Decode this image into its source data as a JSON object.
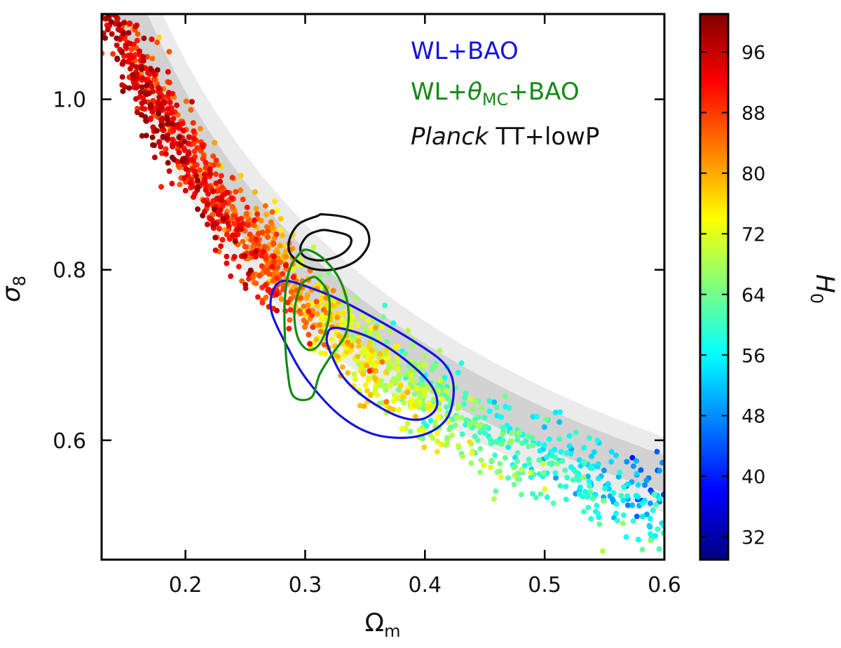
{
  "chart_data": {
    "type": "scatter",
    "title": "",
    "xlabel": {
      "symbol": "Ω",
      "sub": "m"
    },
    "ylabel": {
      "symbol": "σ",
      "sub": "8"
    },
    "xlim": [
      0.13,
      0.6
    ],
    "ylim": [
      0.46,
      1.1
    ],
    "x_ticks": [
      0.2,
      0.3,
      0.4,
      0.5,
      0.6
    ],
    "x_tick_labels": [
      "0.2",
      "0.3",
      "0.4",
      "0.5",
      "0.6"
    ],
    "y_ticks": [
      0.6,
      0.8,
      1.0
    ],
    "y_tick_labels": [
      "0.6",
      "0.8",
      "1.0"
    ],
    "grid": false,
    "colorbar": {
      "label": {
        "symbol": "H",
        "sub": "0"
      },
      "range": [
        29,
        101
      ],
      "ticks": [
        32,
        40,
        48,
        56,
        64,
        72,
        80,
        88,
        96
      ],
      "tick_labels": [
        "32",
        "40",
        "48",
        "56",
        "64",
        "72",
        "80",
        "88",
        "96"
      ],
      "colormap": "jet"
    },
    "legend": {
      "placement": "top-right",
      "entries": [
        {
          "parts": [
            {
              "t": "WL+BAO"
            }
          ],
          "color": "#1414dc"
        },
        {
          "parts": [
            {
              "t": "WL+"
            },
            {
              "t": "θ",
              "style": "italic"
            },
            {
              "t": "MC",
              "style": "sub"
            },
            {
              "t": "+BAO"
            }
          ],
          "color": "#138a13"
        },
        {
          "parts": [
            {
              "t": "Planck",
              "style": "italic"
            },
            {
              "t": " TT+lowP"
            }
          ],
          "color": "#111111"
        }
      ]
    },
    "bands": [
      {
        "name": "outer",
        "color": "#ebebeb",
        "ref_omega": 0.3,
        "s8_low": 0.728,
        "s8_high": 0.854,
        "exponent": 0.5
      },
      {
        "name": "inner",
        "color": "#d2d2d2",
        "ref_omega": 0.3,
        "s8_low": 0.762,
        "s8_high": 0.824,
        "exponent": 0.5
      }
    ],
    "contours": [
      {
        "name": "planck-68",
        "color": "#111111",
        "points": [
          [
            0.32,
            0.846
          ],
          [
            0.336,
            0.84
          ],
          [
            0.338,
            0.83
          ],
          [
            0.33,
            0.818
          ],
          [
            0.314,
            0.811
          ],
          [
            0.3,
            0.815
          ],
          [
            0.296,
            0.826
          ],
          [
            0.302,
            0.84
          ],
          [
            0.312,
            0.846
          ]
        ]
      },
      {
        "name": "planck-95",
        "color": "#111111",
        "points": [
          [
            0.315,
            0.865
          ],
          [
            0.335,
            0.861
          ],
          [
            0.35,
            0.85
          ],
          [
            0.353,
            0.83
          ],
          [
            0.342,
            0.81
          ],
          [
            0.322,
            0.8
          ],
          [
            0.302,
            0.803
          ],
          [
            0.288,
            0.818
          ],
          [
            0.287,
            0.836
          ],
          [
            0.295,
            0.854
          ],
          [
            0.31,
            0.863
          ]
        ]
      },
      {
        "name": "wlbao-68",
        "color": "#1414dc",
        "points": [
          [
            0.325,
            0.732
          ],
          [
            0.355,
            0.72
          ],
          [
            0.383,
            0.695
          ],
          [
            0.405,
            0.665
          ],
          [
            0.41,
            0.64
          ],
          [
            0.398,
            0.625
          ],
          [
            0.378,
            0.628
          ],
          [
            0.352,
            0.648
          ],
          [
            0.333,
            0.672
          ],
          [
            0.322,
            0.7
          ],
          [
            0.318,
            0.72
          ]
        ]
      },
      {
        "name": "wlbao-95",
        "color": "#1414dc",
        "points": [
          [
            0.282,
            0.787
          ],
          [
            0.302,
            0.78
          ],
          [
            0.33,
            0.764
          ],
          [
            0.362,
            0.74
          ],
          [
            0.392,
            0.715
          ],
          [
            0.416,
            0.69
          ],
          [
            0.424,
            0.662
          ],
          [
            0.418,
            0.625
          ],
          [
            0.395,
            0.605
          ],
          [
            0.36,
            0.606
          ],
          [
            0.33,
            0.628
          ],
          [
            0.302,
            0.67
          ],
          [
            0.285,
            0.71
          ],
          [
            0.272,
            0.75
          ],
          [
            0.273,
            0.775
          ]
        ]
      },
      {
        "name": "wltheta-68",
        "color": "#138a13",
        "points": [
          [
            0.31,
            0.79
          ],
          [
            0.319,
            0.773
          ],
          [
            0.32,
            0.745
          ],
          [
            0.313,
            0.715
          ],
          [
            0.303,
            0.706
          ],
          [
            0.294,
            0.72
          ],
          [
            0.291,
            0.75
          ],
          [
            0.296,
            0.78
          ],
          [
            0.304,
            0.79
          ]
        ]
      },
      {
        "name": "wltheta-95",
        "color": "#138a13",
        "points": [
          [
            0.303,
            0.823
          ],
          [
            0.316,
            0.812
          ],
          [
            0.329,
            0.788
          ],
          [
            0.336,
            0.755
          ],
          [
            0.334,
            0.725
          ],
          [
            0.322,
            0.7
          ],
          [
            0.312,
            0.677
          ],
          [
            0.305,
            0.65
          ],
          [
            0.29,
            0.652
          ],
          [
            0.285,
            0.685
          ],
          [
            0.283,
            0.725
          ],
          [
            0.283,
            0.765
          ],
          [
            0.287,
            0.8
          ],
          [
            0.296,
            0.82
          ]
        ]
      }
    ],
    "scatter_trend": {
      "points": [
        [
          0.135,
          1.1
        ],
        [
          0.15,
          1.06
        ],
        [
          0.17,
          1.01
        ],
        [
          0.2,
          0.935
        ],
        [
          0.23,
          0.875
        ],
        [
          0.26,
          0.825
        ],
        [
          0.3,
          0.765
        ],
        [
          0.35,
          0.7
        ],
        [
          0.4,
          0.65
        ],
        [
          0.45,
          0.61
        ],
        [
          0.5,
          0.575
        ],
        [
          0.55,
          0.545
        ],
        [
          0.6,
          0.515
        ]
      ],
      "h0_at": [
        [
          0.13,
          95
        ],
        [
          0.2,
          91
        ],
        [
          0.26,
          86
        ],
        [
          0.3,
          79
        ],
        [
          0.36,
          71
        ],
        [
          0.42,
          65
        ],
        [
          0.5,
          59
        ],
        [
          0.6,
          51
        ]
      ],
      "n_points": 1650
    }
  }
}
